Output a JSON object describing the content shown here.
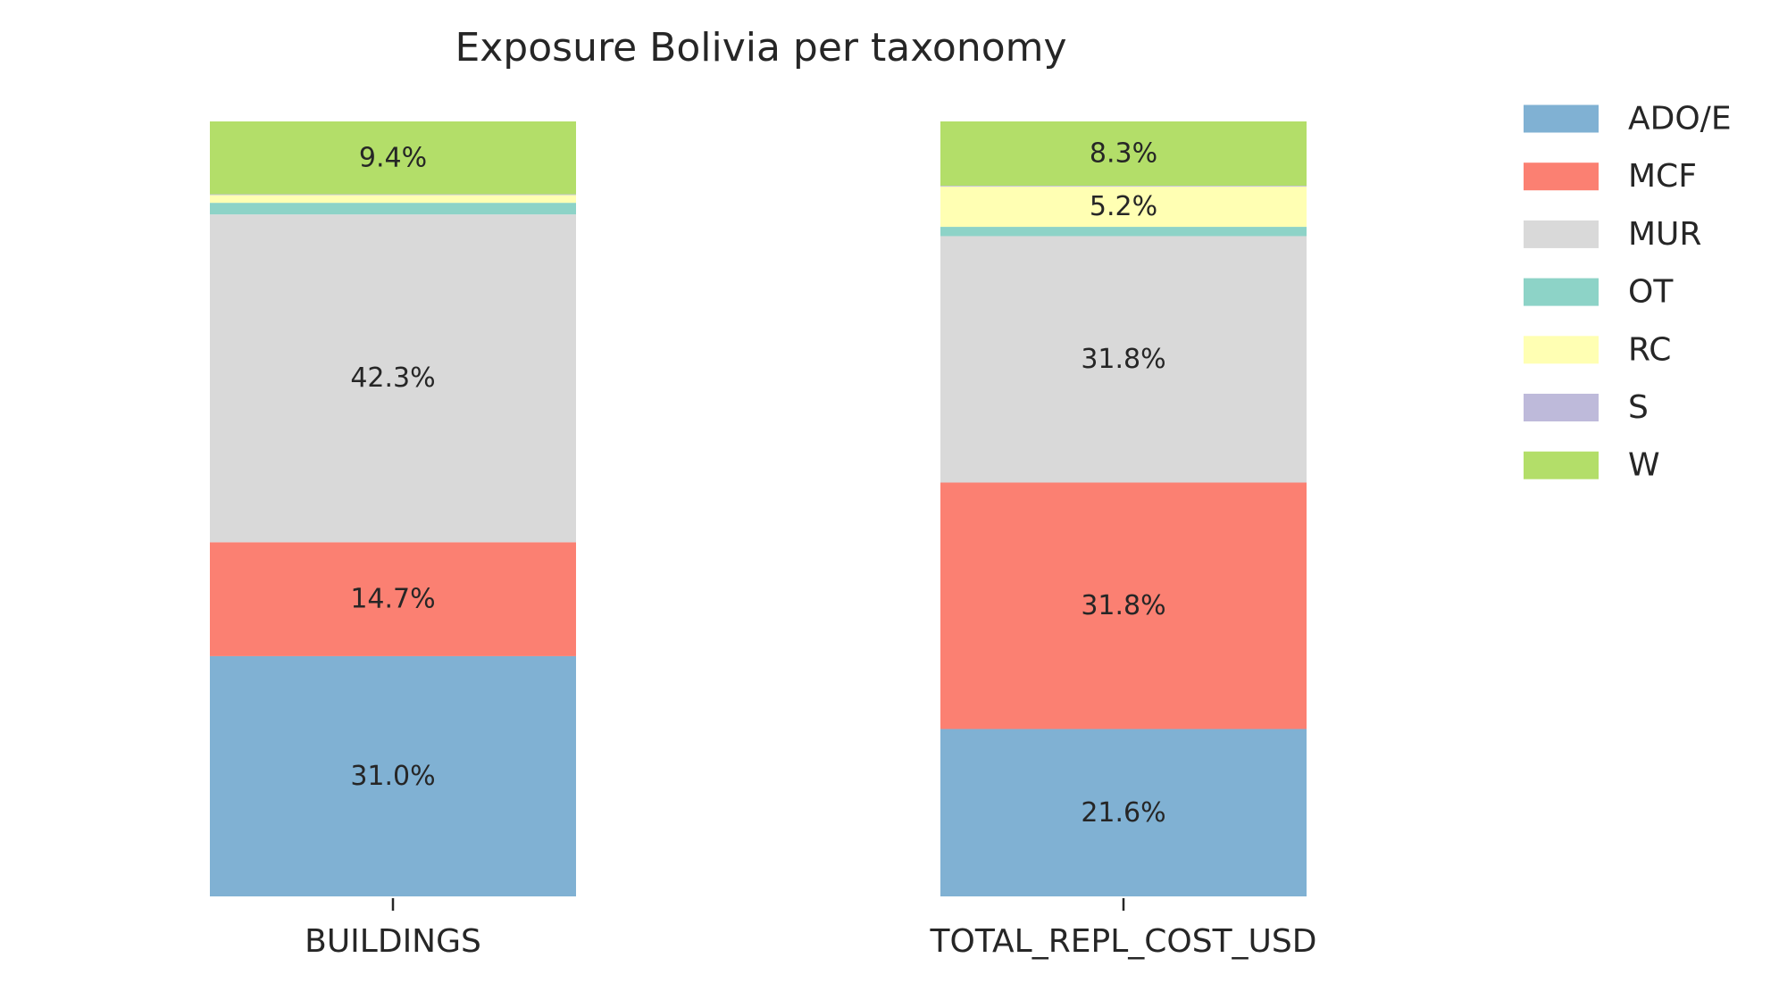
{
  "chart_data": {
    "type": "bar",
    "stacked": true,
    "normalized": true,
    "title": "Exposure Bolivia per taxonomy",
    "xlabel": "",
    "ylabel": "",
    "ylim": [
      0,
      1
    ],
    "grid": false,
    "legend_position": "right",
    "categories": [
      "BUILDINGS",
      "TOTAL_REPL_COST_USD"
    ],
    "series": [
      {
        "name": "ADO/E",
        "color": "#80b1d3",
        "values": [
          0.31,
          0.216
        ],
        "labels": [
          "31.0%",
          "21.6%"
        ]
      },
      {
        "name": "MCF",
        "color": "#fb8072",
        "values": [
          0.147,
          0.318
        ],
        "labels": [
          "14.7%",
          "31.8%"
        ]
      },
      {
        "name": "MUR",
        "color": "#d9d9d9",
        "values": [
          0.423,
          0.318
        ],
        "labels": [
          "42.3%",
          "31.8%"
        ]
      },
      {
        "name": "OT",
        "color": "#8dd3c7",
        "values": [
          0.015,
          0.012
        ],
        "labels": [
          "",
          ""
        ]
      },
      {
        "name": "RC",
        "color": "#ffffb3",
        "values": [
          0.01,
          0.052
        ],
        "labels": [
          "",
          "5.2%"
        ]
      },
      {
        "name": "S",
        "color": "#bebada",
        "values": [
          0.001,
          0.001
        ],
        "labels": [
          "",
          ""
        ]
      },
      {
        "name": "W",
        "color": "#b3de69",
        "values": [
          0.094,
          0.083
        ],
        "labels": [
          "9.4%",
          "8.3%"
        ]
      }
    ]
  }
}
